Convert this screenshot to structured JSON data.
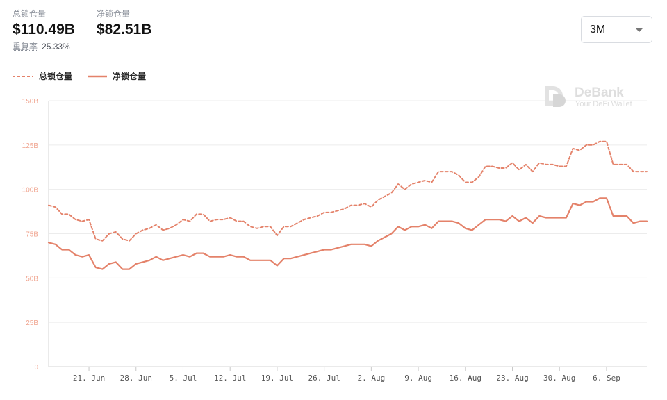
{
  "stats": {
    "total": {
      "label": "总锁仓量",
      "value": "$110.49B"
    },
    "net": {
      "label": "净锁仓量",
      "value": "$82.51B"
    },
    "overlap": {
      "label": "重复率",
      "value": "25.33%"
    }
  },
  "range_select": {
    "value": "3M"
  },
  "watermark": {
    "brand": "DeBank",
    "tagline": "Your DeFi Wallet"
  },
  "colors": {
    "line": "#e4826a",
    "tick": "#f0a48f",
    "grid": "#ececec"
  },
  "chart_data": {
    "type": "line",
    "x": [
      "2021-06-15",
      "2021-06-16",
      "2021-06-17",
      "2021-06-18",
      "2021-06-19",
      "2021-06-20",
      "2021-06-21",
      "2021-06-22",
      "2021-06-23",
      "2021-06-24",
      "2021-06-25",
      "2021-06-26",
      "2021-06-27",
      "2021-06-28",
      "2021-06-29",
      "2021-06-30",
      "2021-07-01",
      "2021-07-02",
      "2021-07-03",
      "2021-07-04",
      "2021-07-05",
      "2021-07-06",
      "2021-07-07",
      "2021-07-08",
      "2021-07-09",
      "2021-07-10",
      "2021-07-11",
      "2021-07-12",
      "2021-07-13",
      "2021-07-14",
      "2021-07-15",
      "2021-07-16",
      "2021-07-17",
      "2021-07-18",
      "2021-07-19",
      "2021-07-20",
      "2021-07-21",
      "2021-07-22",
      "2021-07-23",
      "2021-07-24",
      "2021-07-25",
      "2021-07-26",
      "2021-07-27",
      "2021-07-28",
      "2021-07-29",
      "2021-07-30",
      "2021-07-31",
      "2021-08-01",
      "2021-08-02",
      "2021-08-03",
      "2021-08-04",
      "2021-08-05",
      "2021-08-06",
      "2021-08-07",
      "2021-08-08",
      "2021-08-09",
      "2021-08-10",
      "2021-08-11",
      "2021-08-12",
      "2021-08-13",
      "2021-08-14",
      "2021-08-15",
      "2021-08-16",
      "2021-08-17",
      "2021-08-18",
      "2021-08-19",
      "2021-08-20",
      "2021-08-21",
      "2021-08-22",
      "2021-08-23",
      "2021-08-24",
      "2021-08-25",
      "2021-08-26",
      "2021-08-27",
      "2021-08-28",
      "2021-08-29",
      "2021-08-30",
      "2021-08-31",
      "2021-09-01",
      "2021-09-02",
      "2021-09-03",
      "2021-09-04",
      "2021-09-05",
      "2021-09-06",
      "2021-09-07",
      "2021-09-08",
      "2021-09-09",
      "2021-09-10",
      "2021-09-11",
      "2021-09-12"
    ],
    "series": [
      {
        "name": "总锁仓量",
        "style": "dashed",
        "values": [
          91,
          90,
          86,
          86,
          83,
          82,
          83,
          72,
          71,
          75,
          76,
          72,
          71,
          75,
          77,
          78,
          80,
          77,
          78,
          80,
          83,
          82,
          86,
          86,
          82,
          83,
          83,
          84,
          82,
          82,
          79,
          78,
          79,
          79,
          74,
          79,
          79,
          81,
          83,
          84,
          85,
          87,
          87,
          88,
          89,
          91,
          91,
          92,
          90,
          94,
          96,
          98,
          103,
          100,
          103,
          104,
          105,
          104,
          110,
          110,
          110,
          108,
          104,
          104,
          107,
          113,
          113,
          112,
          112,
          115,
          111,
          114,
          110,
          115,
          114,
          114,
          113,
          113,
          123,
          122,
          125,
          125,
          127,
          127,
          114,
          114,
          114,
          110,
          110,
          110
        ]
      },
      {
        "name": "净锁仓量",
        "style": "solid",
        "values": [
          70,
          69,
          66,
          66,
          63,
          62,
          63,
          56,
          55,
          58,
          59,
          55,
          55,
          58,
          59,
          60,
          62,
          60,
          61,
          62,
          63,
          62,
          64,
          64,
          62,
          62,
          62,
          63,
          62,
          62,
          60,
          60,
          60,
          60,
          57,
          61,
          61,
          62,
          63,
          64,
          65,
          66,
          66,
          67,
          68,
          69,
          69,
          69,
          68,
          71,
          73,
          75,
          79,
          77,
          79,
          79,
          80,
          78,
          82,
          82,
          82,
          81,
          78,
          77,
          80,
          83,
          83,
          83,
          82,
          85,
          82,
          84,
          81,
          85,
          84,
          84,
          84,
          84,
          92,
          91,
          93,
          93,
          95,
          95,
          85,
          85,
          85,
          81,
          82,
          82
        ]
      }
    ],
    "ylim": [
      0,
      150
    ],
    "yticks": [
      0,
      25,
      50,
      75,
      100,
      125,
      150
    ],
    "yticklabels": [
      "0",
      "25B",
      "50B",
      "75B",
      "100B",
      "125B",
      "150B"
    ],
    "xticks": [
      "2021-06-21",
      "2021-06-28",
      "2021-07-05",
      "2021-07-12",
      "2021-07-19",
      "2021-07-26",
      "2021-08-02",
      "2021-08-09",
      "2021-08-16",
      "2021-08-23",
      "2021-08-30",
      "2021-09-06"
    ],
    "xticklabels": [
      "21. Jun",
      "28. Jun",
      "5. Jul",
      "12. Jul",
      "19. Jul",
      "26. Jul",
      "2. Aug",
      "9. Aug",
      "16. Aug",
      "23. Aug",
      "30. Aug",
      "6. Sep"
    ],
    "legend": "top-left",
    "grid": true
  }
}
